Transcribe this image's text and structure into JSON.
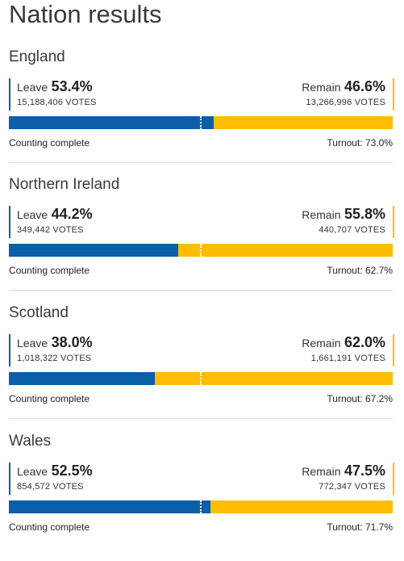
{
  "page_title": "Nation results",
  "labels": {
    "leave": "Leave",
    "remain": "Remain"
  },
  "colors": {
    "leave": "#0b5ea8",
    "remain": "#ffbd00"
  },
  "nations": [
    {
      "name": "England",
      "leave_pct": "53.4%",
      "leave_votes": "15,188,406 VOTES",
      "remain_pct": "46.6%",
      "remain_votes": "13,266,996 VOTES",
      "leave_share": 53.4,
      "status": "Counting complete",
      "turnout": "Turnout: 73.0%"
    },
    {
      "name": "Northern Ireland",
      "leave_pct": "44.2%",
      "leave_votes": "349,442 VOTES",
      "remain_pct": "55.8%",
      "remain_votes": "440,707 VOTES",
      "leave_share": 44.2,
      "status": "Counting complete",
      "turnout": "Turnout: 62.7%"
    },
    {
      "name": "Scotland",
      "leave_pct": "38.0%",
      "leave_votes": "1,018,322 VOTES",
      "remain_pct": "62.0%",
      "remain_votes": "1,661,191 VOTES",
      "leave_share": 38.0,
      "status": "Counting complete",
      "turnout": "Turnout: 67.2%"
    },
    {
      "name": "Wales",
      "leave_pct": "52.5%",
      "leave_votes": "854,572 VOTES",
      "remain_pct": "47.5%",
      "remain_votes": "772,347 VOTES",
      "leave_share": 52.5,
      "status": "Counting complete",
      "turnout": "Turnout: 71.7%"
    }
  ]
}
